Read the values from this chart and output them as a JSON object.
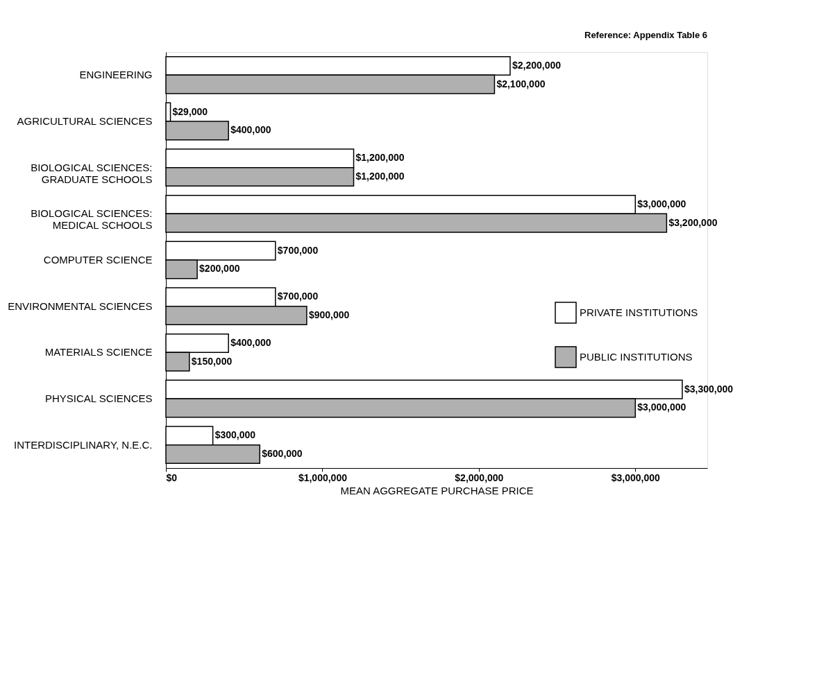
{
  "chart_data": {
    "type": "bar",
    "orientation": "horizontal",
    "xlabel": "MEAN AGGREGATE PURCHASE PRICE",
    "annotations": [
      "Reference: Appendix Table 6"
    ],
    "categories": [
      "ENGINEERING",
      "AGRICULTURAL SCIENCES",
      "BIOLOGICAL SCIENCES: GRADUATE SCHOOLS",
      "BIOLOGICAL SCIENCES: MEDICAL SCHOOLS",
      "COMPUTER SCIENCE",
      "ENVIRONMENTAL SCIENCES",
      "MATERIALS SCIENCE",
      "PHYSICAL SCIENCES",
      "INTERDISCIPLINARY, N.E.C."
    ],
    "series": [
      {
        "name": "PRIVATE INSTITUTIONS",
        "color": "#ffffff",
        "values": [
          2200000,
          29000,
          1200000,
          3000000,
          700000,
          700000,
          400000,
          3300000,
          300000
        ],
        "value_labels": [
          "$2,200,000",
          "$29,000",
          "$1,200,000",
          "$3,000,000",
          "$700,000",
          "$700,000",
          "$400,000",
          "$3,300,000",
          "$300,000"
        ]
      },
      {
        "name": "PUBLIC INSTITUTIONS",
        "color": "#b0b0b0",
        "values": [
          2100000,
          400000,
          1200000,
          3200000,
          200000,
          900000,
          150000,
          3000000,
          600000
        ],
        "value_labels": [
          "$2,100,000",
          "$400,000",
          "$1,200,000",
          "$3,200,000",
          "$200,000",
          "$900,000",
          "$150,000",
          "$3,000,000",
          "$600,000"
        ]
      }
    ],
    "xlim": [
      0,
      3460000
    ],
    "xticks": [
      {
        "value": 0,
        "label": "$0"
      },
      {
        "value": 1000000,
        "label": "$1,000,000"
      },
      {
        "value": 2000000,
        "label": "$2,000,000"
      },
      {
        "value": 3000000,
        "label": "$3,000,000"
      }
    ],
    "grid": false,
    "legend": "right"
  }
}
